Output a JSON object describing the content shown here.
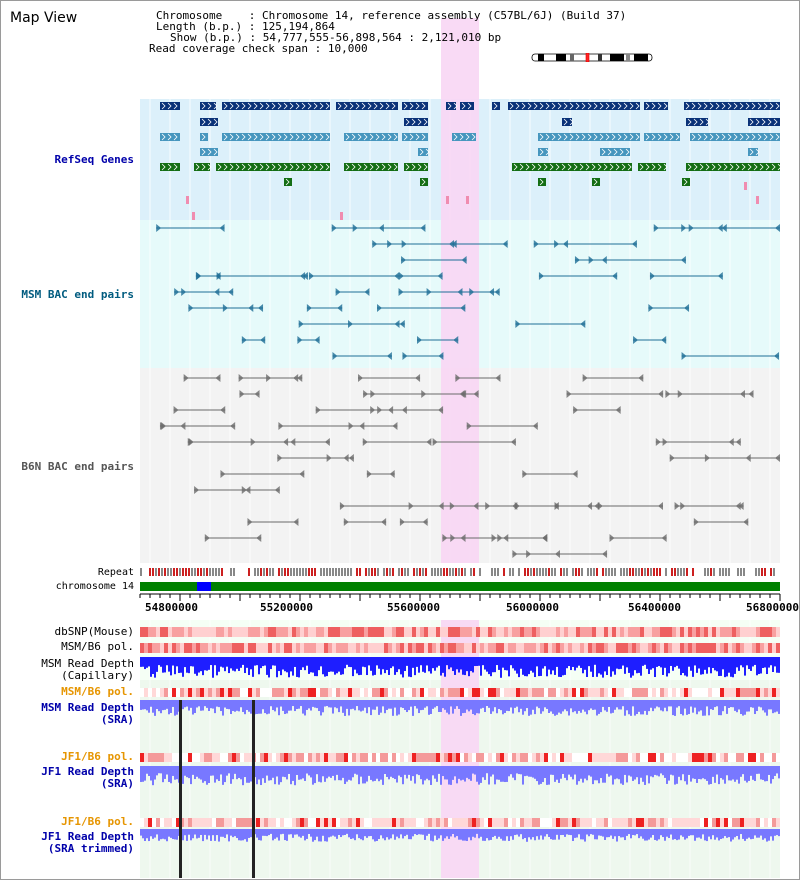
{
  "page": {
    "title": "Map View",
    "info": {
      "chromosome_label": "Chromosome",
      "chromosome_value": "Chromosome 14, reference assembly (C57BL/6J) (Build 37)",
      "length_label": "Length (b.p.)",
      "length_value": "125,194,864",
      "show_label": "Show (b.p.)",
      "show_value": "54,777,555-56,898,564 : 2,121,010 bp",
      "coverage_label": "Read coverage check span",
      "coverage_value": "10,000"
    }
  },
  "tracks": {
    "refseq": {
      "label": "RefSeq Genes",
      "color": "#0000aa"
    },
    "msm_bac": {
      "label": "MSM BAC end pairs",
      "color": "#005b7f"
    },
    "b6n_bac": {
      "label": "B6N BAC end pairs",
      "color": "#555555"
    },
    "repeat": {
      "label": "Repeat"
    },
    "chromosome": {
      "label": "chromosome 14"
    },
    "dbsnp": {
      "label": "dbSNP(Mouse)"
    },
    "msm_b6_pol_1": {
      "label": "MSM/B6 pol."
    },
    "msm_read_depth_cap": {
      "label": "MSM Read Depth\n(Capillary)"
    },
    "msm_b6_pol_2": {
      "label": "MSM/B6 pol.",
      "color": "#e69500"
    },
    "msm_read_depth_sra": {
      "label": "MSM Read Depth\n(SRA)",
      "color": "#0000aa"
    },
    "jf1_b6_pol_1": {
      "label": "JF1/B6 pol.",
      "color": "#e69500"
    },
    "jf1_read_depth_sra": {
      "label": "JF1 Read Depth\n(SRA)",
      "color": "#0000aa"
    },
    "jf1_b6_pol_2": {
      "label": "JF1/B6 pol.",
      "color": "#e69500"
    },
    "jf1_read_depth_trim": {
      "label": "JF1 Read Depth\n(SRA trimmed)",
      "color": "#0000aa"
    }
  },
  "axis": {
    "ticks": [
      "54800000",
      "55200000",
      "55600000",
      "56000000",
      "56400000",
      "56800000"
    ]
  },
  "colors": {
    "refseq_bg": "#dcf0fa",
    "bac_bg": "#e6fafa",
    "highlight": "#f8d6f4",
    "refseq_dark": "#0a3278",
    "refseq_light": "#4696be",
    "refseq_green": "#146e14",
    "chrom_green": "#008000",
    "chrom_blue": "#0000ff",
    "depth_blue": "#1e1eff",
    "depth_light": "#7878ff"
  }
}
